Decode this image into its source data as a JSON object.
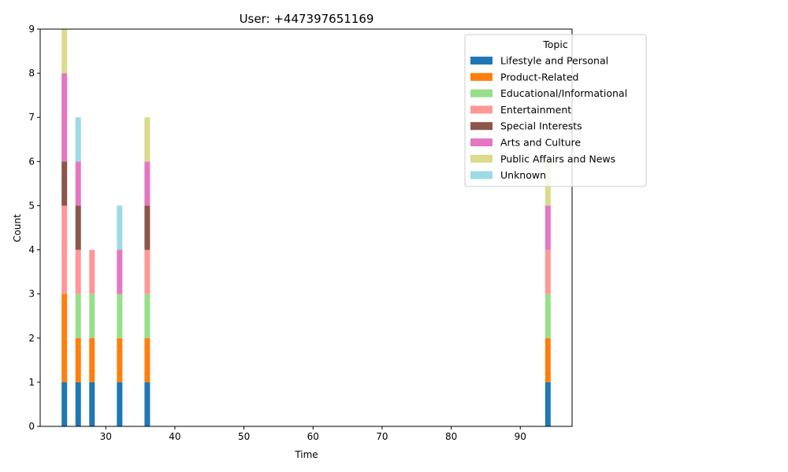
{
  "chart_data": {
    "type": "bar",
    "stacked": true,
    "title": "User: +447397651169",
    "xlabel": "Time",
    "ylabel": "Count",
    "xlim": [
      20.5,
      97.5
    ],
    "ylim": [
      0,
      9
    ],
    "xticks": [
      30,
      40,
      50,
      60,
      70,
      80,
      90
    ],
    "yticks": [
      0,
      1,
      2,
      3,
      4,
      5,
      6,
      7,
      8,
      9
    ],
    "grid": false,
    "legend": {
      "title": "Topic",
      "placement": "upper right"
    },
    "bar_width": 0.8,
    "x": [
      24,
      26,
      28,
      32,
      36,
      94
    ],
    "series": [
      {
        "name": "Lifestyle and Personal",
        "color": "#1f77b4",
        "values": [
          1,
          1,
          1,
          1,
          1,
          1
        ]
      },
      {
        "name": "Product-Related",
        "color": "#ff7f0e",
        "values": [
          2,
          1,
          1,
          1,
          1,
          1
        ]
      },
      {
        "name": "Educational/Informational",
        "color": "#98df8a",
        "values": [
          0,
          1,
          1,
          1,
          1,
          1
        ]
      },
      {
        "name": "Entertainment",
        "color": "#ff9896",
        "values": [
          2,
          1,
          1,
          0,
          1,
          1
        ]
      },
      {
        "name": "Special Interests",
        "color": "#8c564b",
        "values": [
          1,
          1,
          0,
          0,
          1,
          0
        ]
      },
      {
        "name": "Arts and Culture",
        "color": "#e377c2",
        "values": [
          2,
          1,
          0,
          1,
          1,
          1
        ]
      },
      {
        "name": "Public Affairs and News",
        "color": "#dbdb8d",
        "values": [
          1,
          0,
          0,
          0,
          1,
          1
        ]
      },
      {
        "name": "Unknown",
        "color": "#9edae5",
        "values": [
          0,
          1,
          0,
          1,
          0,
          0
        ]
      }
    ]
  }
}
